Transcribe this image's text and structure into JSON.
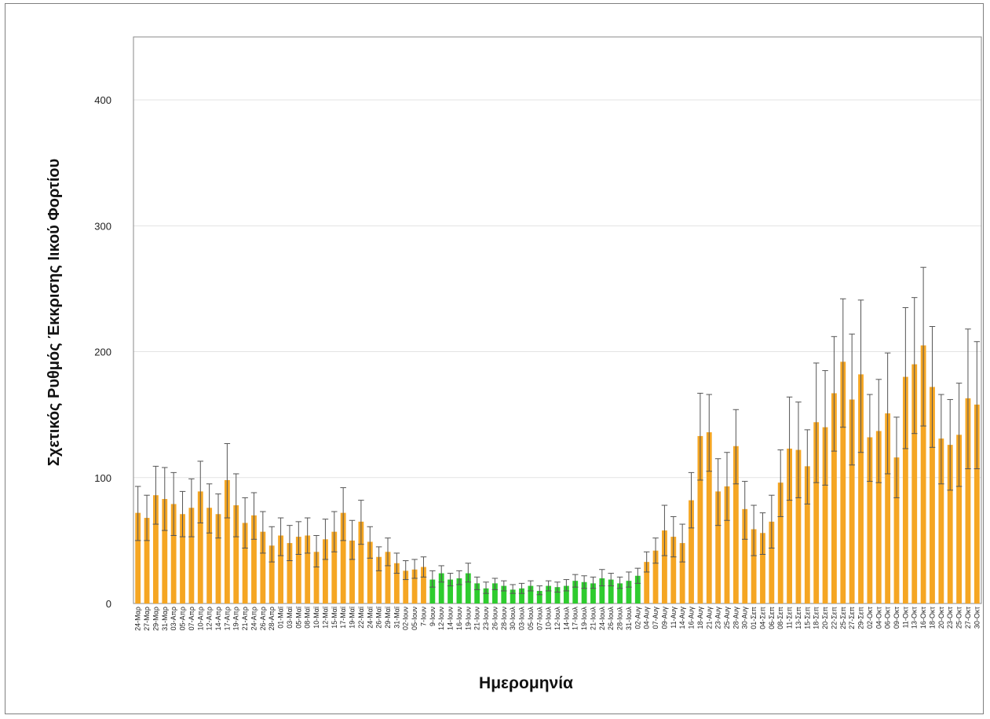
{
  "chart_data": {
    "type": "bar",
    "title": "",
    "xlabel": "Ημερομηνία",
    "ylabel": "Σχετικός Ρυθμός Έκκρισης Ιικού Φορτίου",
    "ylim": [
      0,
      450
    ],
    "yticks": [
      0,
      100,
      200,
      300,
      400
    ],
    "grid": true,
    "legend": "none",
    "colors": {
      "normal": "#f5a623",
      "highlight": "#2ecc2e",
      "error": "#555555",
      "grid": "#e3e3e3"
    },
    "categories": [
      "24-Μαρ",
      "27-Μαρ",
      "29-Μαρ",
      "31-Μαρ",
      "03-Απρ",
      "05-Απρ",
      "07-Απρ",
      "10-Απρ",
      "12-Απρ",
      "14-Απρ",
      "17-Απρ",
      "19-Απρ",
      "21-Απρ",
      "24-Απρ",
      "26-Απρ",
      "28-Απρ",
      "01-Μαϊ",
      "03-Μαϊ",
      "05-Μαϊ",
      "08-Μαϊ",
      "10-Μαϊ",
      "12-Μαϊ",
      "15-Μαϊ",
      "17-Μαϊ",
      "19-Μαϊ",
      "22-Μαϊ",
      "24-Μαϊ",
      "26-Μαϊ",
      "29-Μαϊ",
      "31-Μαϊ",
      "02-Ιουν",
      "05-Ιουν",
      "7-Ιουν",
      "9-Ιουν",
      "12-Ιουν",
      "14-Ιουν",
      "16-Ιουν",
      "19-Ιουν",
      "21-Ιουν",
      "23-Ιουν",
      "26-Ιουν",
      "28-Ιουν",
      "30-Ιουλ",
      "03-Ιουλ",
      "05-Ιουλ",
      "07-Ιουλ",
      "10-Ιουλ",
      "12-Ιουλ",
      "14-Ιουλ",
      "17-Ιουλ",
      "19-Ιουλ",
      "21-Ιουλ",
      "24-Ιουλ",
      "26-Ιουλ",
      "28-Ιουλ",
      "31-Ιουλ",
      "02-Αυγ",
      "04-Αυγ",
      "07-Αυγ",
      "09-Αυγ",
      "11-Αυγ",
      "14-Αυγ",
      "16-Αυγ",
      "18-Αυγ",
      "21-Αυγ",
      "23-Αυγ",
      "25-Αυγ",
      "28-Αυγ",
      "30-Αυγ",
      "01-Σεπ",
      "04-Σεπ",
      "06-Σεπ",
      "08-Σεπ",
      "11-Σεπ",
      "13-Σεπ",
      "15-Σεπ",
      "18-Σεπ",
      "20-Σεπ",
      "22-Σεπ",
      "25-Σεπ",
      "27-Σεπ",
      "29-Σεπ",
      "02-Οκτ",
      "04-Οκτ",
      "06-Οκτ",
      "09-Οκτ",
      "11-Οκτ",
      "13-Οκτ",
      "16-Οκτ",
      "18-Οκτ",
      "20-Οκτ",
      "23-Οκτ",
      "25-Οκτ",
      "27-Οκτ",
      "30-Οκτ"
    ],
    "values": [
      72,
      68,
      86,
      83,
      79,
      71,
      76,
      89,
      76,
      71,
      98,
      78,
      64,
      70,
      57,
      46,
      54,
      48,
      53,
      54,
      41,
      51,
      57,
      72,
      50,
      65,
      49,
      37,
      41,
      32,
      26,
      27,
      29,
      19,
      24,
      19,
      20,
      24,
      16,
      12,
      16,
      14,
      11,
      12,
      14,
      10,
      14,
      13,
      14,
      18,
      17,
      16,
      20,
      19,
      16,
      18,
      22,
      33,
      42,
      58,
      53,
      48,
      82,
      133,
      136,
      89,
      93,
      125,
      75,
      59,
      56,
      65,
      96,
      123,
      122,
      109,
      144,
      140,
      167,
      192,
      162,
      182,
      132,
      137,
      151,
      116,
      180,
      190,
      205,
      172,
      131,
      126,
      134,
      163,
      158
    ],
    "error_upper": [
      93,
      86,
      109,
      108,
      104,
      89,
      99,
      113,
      95,
      87,
      127,
      103,
      84,
      88,
      73,
      61,
      68,
      62,
      65,
      68,
      54,
      67,
      73,
      92,
      66,
      82,
      61,
      45,
      52,
      40,
      34,
      35,
      37,
      26,
      30,
      24,
      26,
      32,
      21,
      17,
      20,
      18,
      15,
      16,
      18,
      14,
      18,
      17,
      19,
      23,
      22,
      21,
      27,
      24,
      21,
      25,
      28,
      41,
      52,
      78,
      69,
      63,
      104,
      167,
      166,
      115,
      120,
      154,
      97,
      78,
      72,
      86,
      122,
      164,
      160,
      138,
      191,
      185,
      212,
      242,
      214,
      241,
      166,
      178,
      199,
      148,
      235,
      243,
      267,
      220,
      166,
      162,
      175,
      218,
      208
    ],
    "error_lower": [
      50,
      50,
      63,
      58,
      54,
      53,
      53,
      64,
      56,
      52,
      68,
      53,
      44,
      51,
      40,
      33,
      38,
      34,
      39,
      40,
      29,
      35,
      41,
      50,
      35,
      47,
      36,
      26,
      30,
      24,
      19,
      20,
      21,
      13,
      17,
      14,
      15,
      17,
      11,
      8,
      11,
      10,
      8,
      8,
      10,
      7,
      10,
      9,
      10,
      13,
      12,
      12,
      14,
      14,
      12,
      13,
      16,
      25,
      32,
      38,
      37,
      33,
      60,
      98,
      105,
      62,
      66,
      95,
      51,
      38,
      39,
      44,
      69,
      82,
      84,
      79,
      96,
      94,
      121,
      140,
      110,
      120,
      97,
      96,
      103,
      84,
      123,
      135,
      141,
      124,
      95,
      90,
      93,
      107,
      107
    ],
    "highlighted_range": [
      "9-Ιουν",
      "02-Αυγ"
    ]
  }
}
